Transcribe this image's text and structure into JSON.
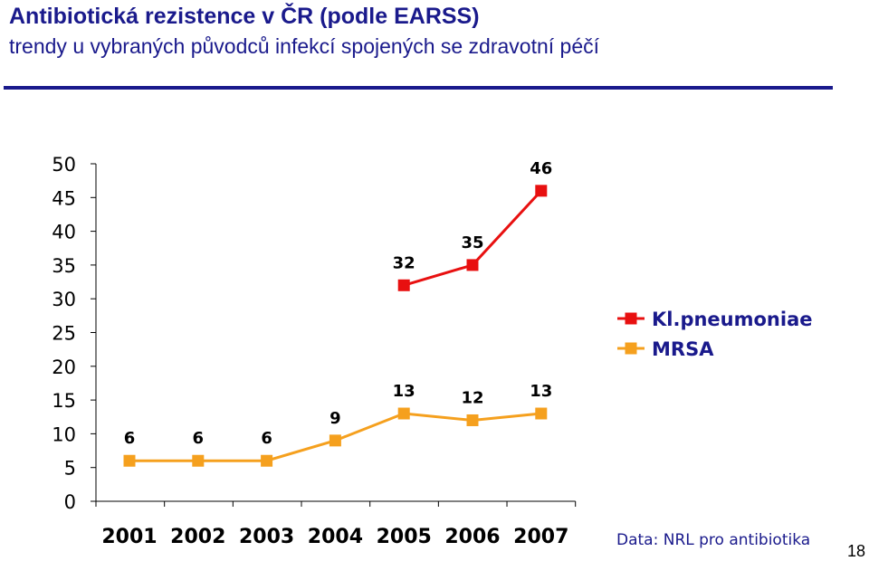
{
  "header": {
    "title": "Antibiotická rezistence v ČR (podle EARSS)",
    "subtitle": "trendy u vybraných původců infekcí spojených se zdravotní péčí"
  },
  "chart_data": {
    "type": "line",
    "x": [
      "2001",
      "2002",
      "2003",
      "2004",
      "2005",
      "2006",
      "2007"
    ],
    "ylim": [
      0,
      50
    ],
    "yticks": [
      0,
      5,
      10,
      15,
      20,
      25,
      30,
      35,
      40,
      45,
      50
    ],
    "grid": false,
    "legend_position": "right",
    "series": [
      {
        "name": "Kl.pneumoniae",
        "color": "#e81010",
        "values": [
          null,
          null,
          null,
          null,
          32,
          35,
          46
        ]
      },
      {
        "name": "MRSA",
        "color": "#f5a01e",
        "values": [
          6,
          6,
          6,
          9,
          13,
          12,
          13
        ]
      }
    ]
  },
  "footer": {
    "source": "Data: NRL pro antibiotika",
    "page_number": "18"
  }
}
